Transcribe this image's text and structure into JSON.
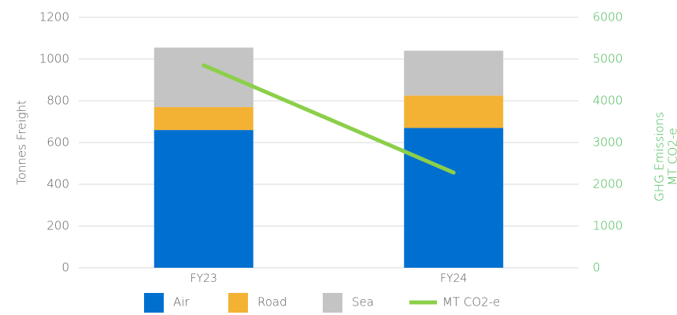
{
  "chart_data": {
    "type": "bar",
    "categories": [
      "FY23",
      "FY24"
    ],
    "series": [
      {
        "name": "Air",
        "color": "#0070d0",
        "values": [
          660,
          670
        ]
      },
      {
        "name": "Road",
        "color": "#f4b234",
        "values": [
          110,
          155
        ]
      },
      {
        "name": "Sea",
        "color": "#c4c4c4",
        "values": [
          285,
          215
        ]
      },
      {
        "name": "MT CO2-e",
        "color": "#8ccf4a",
        "values": [
          4850,
          2280
        ],
        "axis": "y2",
        "type": "line"
      }
    ],
    "stacked": true,
    "ylabel": "Tonnes Freight",
    "y2label": [
      "GHG Emissions",
      "MT CO2-e"
    ],
    "ylim": [
      0,
      1200
    ],
    "yticks": [
      0,
      200,
      400,
      600,
      800,
      1000,
      1200
    ],
    "y2lim": [
      0,
      6000
    ],
    "y2ticks": [
      0,
      1000,
      2000,
      3000,
      4000,
      5000,
      6000
    ],
    "y2color": "#3cb54a",
    "grid": true,
    "legend": "bottom"
  }
}
